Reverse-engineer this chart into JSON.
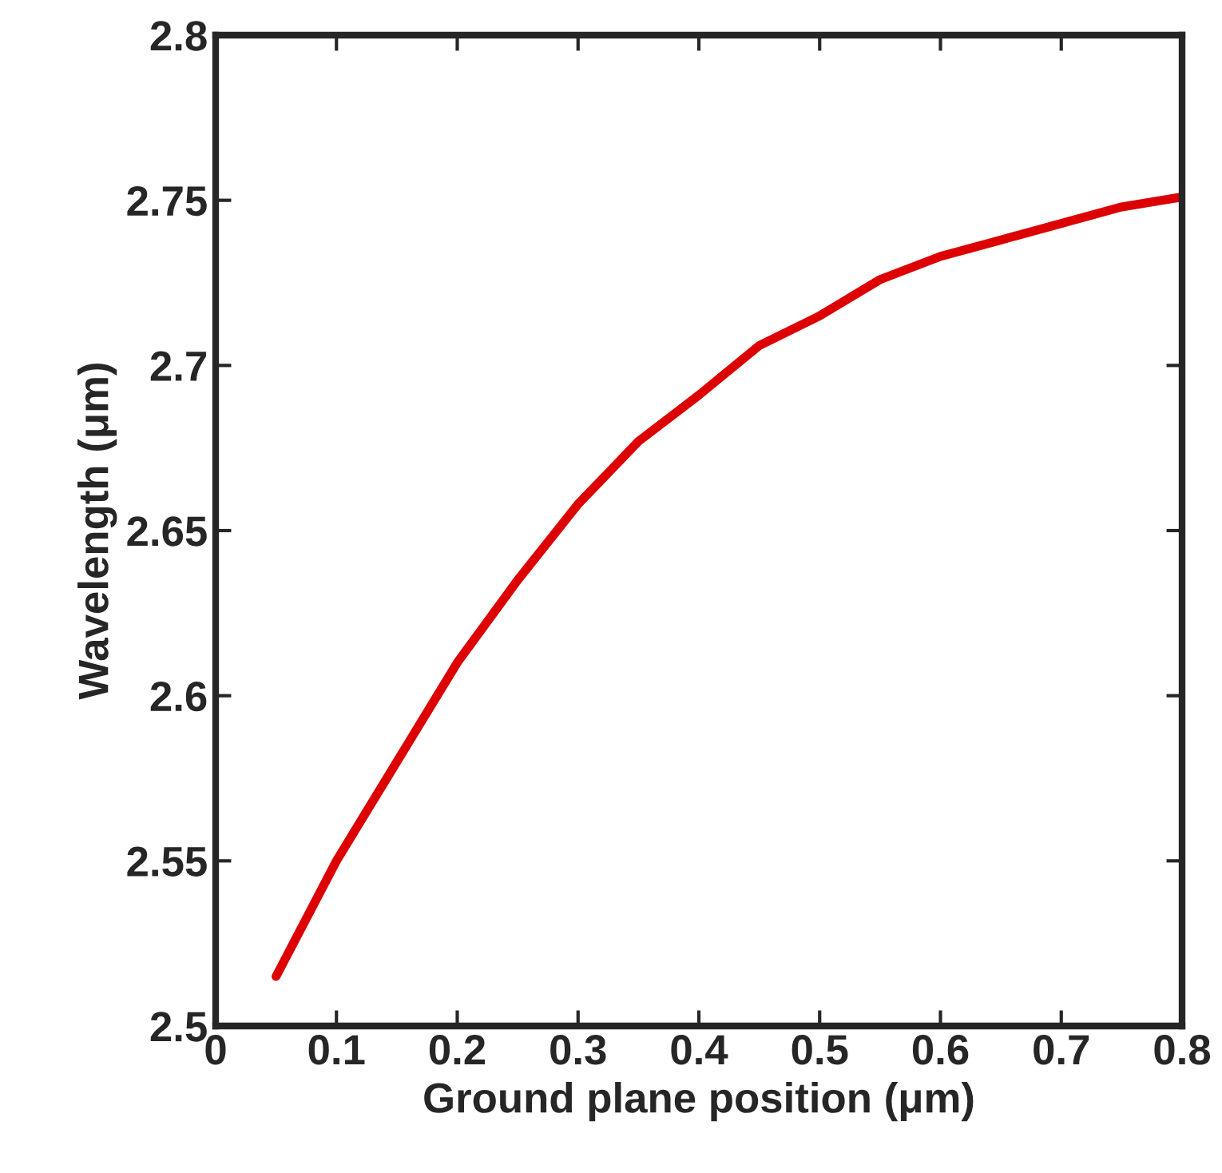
{
  "chart_data": {
    "type": "line",
    "xlabel": "Ground plane position (μm)",
    "ylabel": "Wavelength (μm)",
    "x": [
      0.05,
      0.1,
      0.15,
      0.2,
      0.25,
      0.3,
      0.35,
      0.4,
      0.45,
      0.5,
      0.55,
      0.6,
      0.65,
      0.7,
      0.75,
      0.8
    ],
    "series": [
      {
        "color": "#dd0000",
        "values": [
          2.515,
          2.55,
          2.58,
          2.61,
          2.635,
          2.658,
          2.677,
          2.691,
          2.706,
          2.715,
          2.726,
          2.733,
          2.738,
          2.743,
          2.748,
          2.751
        ]
      }
    ],
    "xlim": [
      0,
      0.8
    ],
    "ylim": [
      2.5,
      2.8
    ],
    "xticks": [
      0,
      0.1,
      0.2,
      0.3,
      0.4,
      0.5,
      0.6,
      0.7,
      0.8
    ],
    "yticks": [
      2.5,
      2.55,
      2.6,
      2.65,
      2.7,
      2.75,
      2.8
    ],
    "grid": false,
    "legend": false,
    "marker": "none",
    "line_style": "solid"
  }
}
